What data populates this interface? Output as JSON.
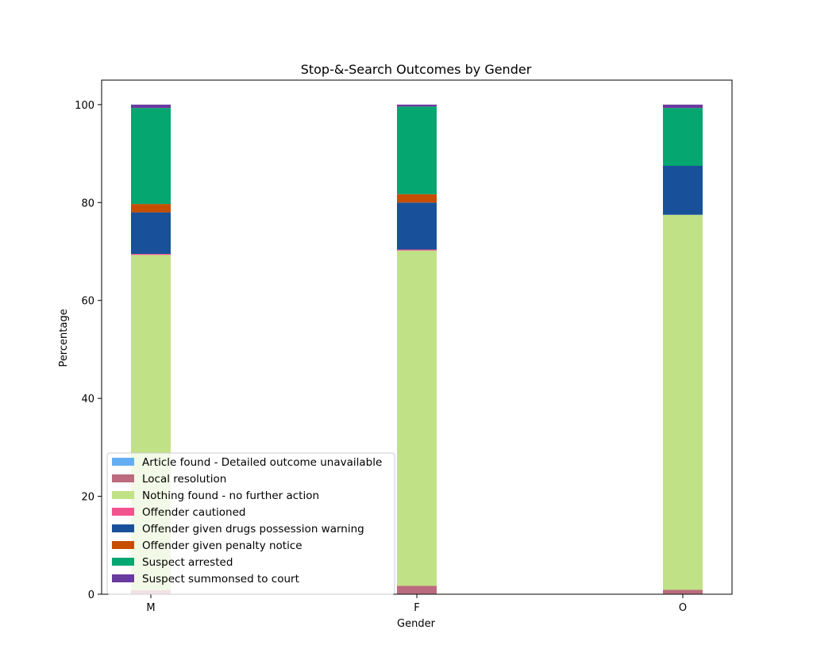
{
  "chart_data": {
    "type": "bar",
    "stacked": true,
    "title": "Stop-&-Search Outcomes by Gender",
    "xlabel": "Gender",
    "ylabel": "Percentage",
    "categories": [
      "M",
      "F",
      "O"
    ],
    "ylim": [
      0,
      105
    ],
    "yticks": [
      0,
      20,
      40,
      60,
      80,
      100
    ],
    "grid": false,
    "legend_position": "bottom-left",
    "series": [
      {
        "name": "Article found - Detailed outcome unavailable",
        "color": "#64aef2",
        "values": [
          0.1,
          0.1,
          0.1
        ]
      },
      {
        "name": "Local resolution",
        "color": "#bb6b7d",
        "values": [
          0.7,
          1.6,
          0.8
        ]
      },
      {
        "name": "Nothing found - no further action",
        "color": "#c1e186",
        "values": [
          68.5,
          68.5,
          76.6
        ]
      },
      {
        "name": "Offender cautioned",
        "color": "#f2528d",
        "values": [
          0.2,
          0.2,
          0.0
        ]
      },
      {
        "name": "Offender given drugs possession warning",
        "color": "#18519a",
        "values": [
          8.5,
          9.6,
          10.0
        ]
      },
      {
        "name": "Offender given penalty notice",
        "color": "#c64e00",
        "values": [
          1.7,
          1.7,
          0.0
        ]
      },
      {
        "name": "Suspect arrested",
        "color": "#05a66f",
        "values": [
          19.6,
          17.9,
          11.8
        ]
      },
      {
        "name": "Suspect summonsed to court",
        "color": "#6a3a9f",
        "values": [
          0.7,
          0.4,
          0.7
        ]
      }
    ]
  }
}
